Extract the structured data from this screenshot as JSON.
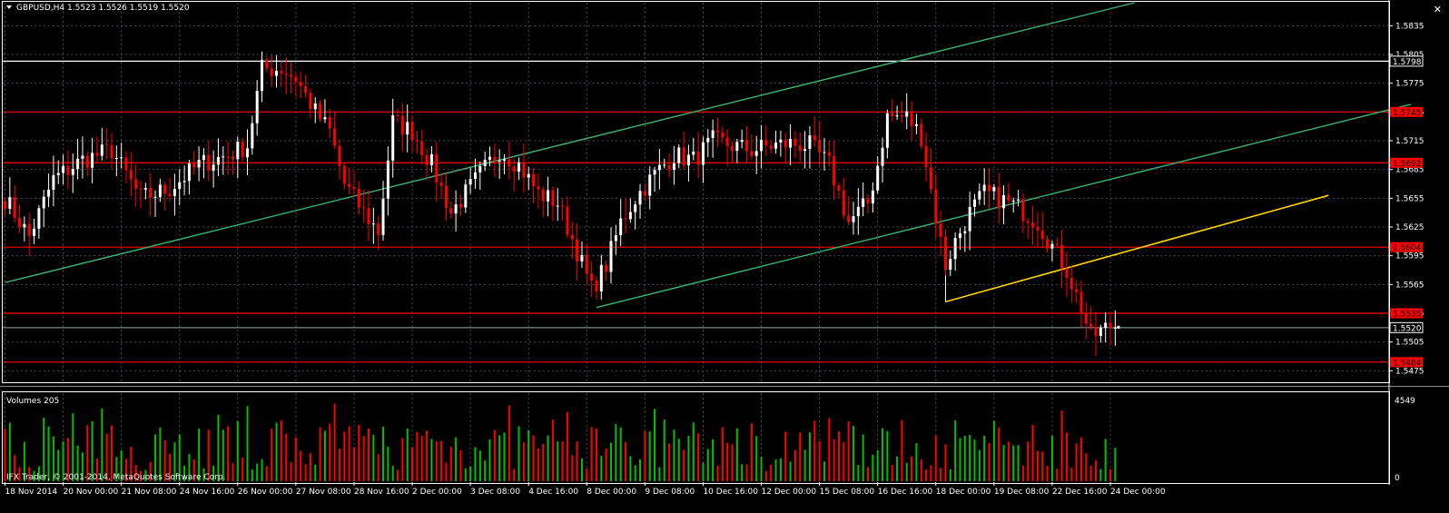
{
  "header": {
    "symbol_label": "GBPUSD,H4",
    "ohlc": "1.5523 1.5526 1.5519 1.5520"
  },
  "volume_panel": {
    "title": "Volumes 205",
    "scale_max": "4549",
    "scale_min": "0"
  },
  "copyright": "IFX Trader, © 2001-2014, MetaQuotes Software Corp.",
  "close_button": "✕",
  "colors": {
    "background": "#000000",
    "bull": "#ffffff",
    "bear": "#ff0000",
    "grid": "#3f4a55",
    "axis_text": "#ffffff",
    "channel": "#3cb371",
    "trend": "#ffd700",
    "level": "#ff0000",
    "vol_up": "#00c000",
    "vol_down": "#ff0000"
  },
  "chart_data": {
    "type": "candlestick",
    "symbol": "GBPUSD",
    "timeframe": "H4",
    "ylim": [
      1.5463,
      1.5859
    ],
    "y_ticks": [
      "1.5835",
      "1.5805",
      "1.5775",
      "1.5745",
      "1.5715",
      "1.5685",
      "1.5655",
      "1.5625",
      "1.5595",
      "1.5565",
      "1.5535",
      "1.5505",
      "1.5475"
    ],
    "x_labels": [
      {
        "bar": 0,
        "label": "18 Nov 2014"
      },
      {
        "bar": 12,
        "label": "20 Nov 00:00"
      },
      {
        "bar": 24,
        "label": "21 Nov 08:00"
      },
      {
        "bar": 36,
        "label": "24 Nov 16:00"
      },
      {
        "bar": 48,
        "label": "26 Nov 00:00"
      },
      {
        "bar": 60,
        "label": "27 Nov 08:00"
      },
      {
        "bar": 72,
        "label": "28 Nov 16:00"
      },
      {
        "bar": 84,
        "label": "2 Dec 00:00"
      },
      {
        "bar": 96,
        "label": "3 Dec 08:00"
      },
      {
        "bar": 108,
        "label": "4 Dec 16:00"
      },
      {
        "bar": 120,
        "label": "8 Dec 00:00"
      },
      {
        "bar": 132,
        "label": "9 Dec 08:00"
      },
      {
        "bar": 144,
        "label": "10 Dec 16:00"
      },
      {
        "bar": 156,
        "label": "12 Dec 00:00"
      },
      {
        "bar": 168,
        "label": "15 Dec 08:00"
      },
      {
        "bar": 180,
        "label": "16 Dec 16:00"
      },
      {
        "bar": 192,
        "label": "18 Dec 00:00"
      },
      {
        "bar": 204,
        "label": "19 Dec 08:00"
      },
      {
        "bar": 216,
        "label": "22 Dec 16:00"
      },
      {
        "bar": 228,
        "label": "24 Dec 00:00"
      }
    ],
    "key_points": [
      [
        0,
        1.5655
      ],
      [
        5,
        1.5615
      ],
      [
        10,
        1.5675
      ],
      [
        16,
        1.5695
      ],
      [
        22,
        1.5705
      ],
      [
        28,
        1.5655
      ],
      [
        34,
        1.5665
      ],
      [
        40,
        1.569
      ],
      [
        46,
        1.57
      ],
      [
        50,
        1.571
      ],
      [
        53,
        1.579
      ],
      [
        57,
        1.579
      ],
      [
        60,
        1.578
      ],
      [
        64,
        1.5745
      ],
      [
        67,
        1.5725
      ],
      [
        70,
        1.567
      ],
      [
        74,
        1.564
      ],
      [
        77,
        1.562
      ],
      [
        80,
        1.5735
      ],
      [
        84,
        1.5725
      ],
      [
        88,
        1.569
      ],
      [
        92,
        1.564
      ],
      [
        98,
        1.568
      ],
      [
        102,
        1.5705
      ],
      [
        106,
        1.569
      ],
      [
        110,
        1.566
      ],
      [
        114,
        1.565
      ],
      [
        118,
        1.56
      ],
      [
        121,
        1.556
      ],
      [
        124,
        1.5585
      ],
      [
        127,
        1.563
      ],
      [
        130,
        1.5655
      ],
      [
        134,
        1.568
      ],
      [
        138,
        1.57
      ],
      [
        142,
        1.5695
      ],
      [
        146,
        1.5715
      ],
      [
        150,
        1.571
      ],
      [
        154,
        1.5705
      ],
      [
        158,
        1.571
      ],
      [
        162,
        1.5712
      ],
      [
        166,
        1.571
      ],
      [
        170,
        1.569
      ],
      [
        174,
        1.563
      ],
      [
        178,
        1.565
      ],
      [
        180,
        1.569
      ],
      [
        182,
        1.574
      ],
      [
        186,
        1.574
      ],
      [
        189,
        1.572
      ],
      [
        192,
        1.5635
      ],
      [
        194,
        1.5585
      ],
      [
        196,
        1.561
      ],
      [
        199,
        1.564
      ],
      [
        202,
        1.566
      ],
      [
        205,
        1.5655
      ],
      [
        209,
        1.5645
      ],
      [
        213,
        1.563
      ],
      [
        216,
        1.5605
      ],
      [
        219,
        1.558
      ],
      [
        222,
        1.554
      ],
      [
        224,
        1.551
      ],
      [
        228,
        1.5522
      ],
      [
        229,
        1.552
      ]
    ],
    "horizontal_levels": [
      {
        "price": 1.5798,
        "label": "1.5798",
        "color": "#ffffff"
      },
      {
        "price": 1.5745,
        "label": "1.5745",
        "color": "#ff0000"
      },
      {
        "price": 1.5692,
        "label": "1.5692",
        "color": "#ff0000"
      },
      {
        "price": 1.5604,
        "label": "1.5604",
        "color": "#ff0000"
      },
      {
        "price": 1.5535,
        "label": "1.5535",
        "color": "#ff0000"
      },
      {
        "price": 1.5484,
        "label": "1.5484",
        "color": "#ff0000"
      }
    ],
    "current_price": {
      "price": 1.552,
      "label": "1.5520"
    },
    "channel_lines": [
      {
        "from": [
          0,
          1.5567
        ],
        "to": [
          233,
          1.5859
        ]
      },
      {
        "from": [
          122,
          1.5541
        ],
        "to": [
          290,
          1.5753
        ]
      }
    ],
    "trend_line": {
      "from": [
        194,
        1.5547
      ],
      "to": [
        273,
        1.5658
      ]
    },
    "volume_max": 4549
  }
}
